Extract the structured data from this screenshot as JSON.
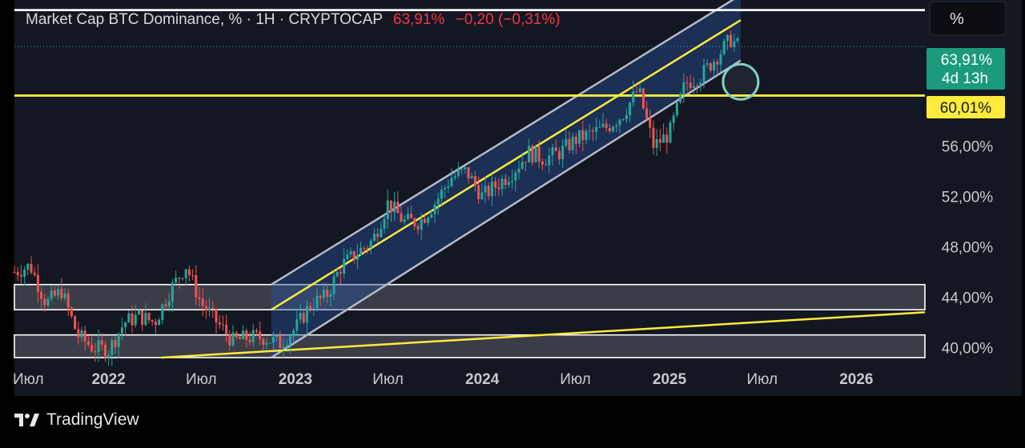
{
  "header": {
    "symbol_text": "Market Cap BTC Dominance, % · 1H · CRYPTOCAP",
    "last_price": "63,91%",
    "change_text": "−0,20 (−0,31%)"
  },
  "scale_button": {
    "label": "%"
  },
  "price_tag": {
    "value": "63,91%",
    "countdown": "4d 13h"
  },
  "level_tag": {
    "value": "60,01%"
  },
  "footer": {
    "brand": "TradingView"
  },
  "colors": {
    "background": "#131722",
    "panel": "#000000",
    "up": "#26a69a",
    "down": "#ef5350",
    "yellow": "#ffeb3b",
    "channel_fill": "#1f3a6e",
    "price_tag": "#1b9a7c",
    "header_red": "#f23645"
  },
  "chart_data": {
    "type": "line",
    "title": "Market Cap BTC Dominance, %",
    "interval": "1H",
    "source": "CRYPTOCAP",
    "x_tick_labels": [
      "Июл",
      "2022",
      "Июл",
      "2023",
      "Июл",
      "2024",
      "Июл",
      "2025",
      "Июл",
      "2026"
    ],
    "y_tick_labels": [
      "40,00%",
      "44,00%",
      "48,00%",
      "52,00%",
      "56,00%"
    ],
    "y_ticks": [
      40,
      44,
      48,
      52,
      56
    ],
    "ylim": [
      39.2,
      67.6
    ],
    "xlim": [
      "2021-07-01",
      "2026-05-15"
    ],
    "series": [
      {
        "values": [
          {
            "t": "2021-07-01",
            "v": 46.0
          },
          {
            "t": "2021-08-01",
            "v": 46.5
          },
          {
            "t": "2021-09-01",
            "v": 43.5
          },
          {
            "t": "2021-10-01",
            "v": 44.5
          },
          {
            "t": "2021-11-01",
            "v": 41.0
          },
          {
            "t": "2021-12-01",
            "v": 40.0
          },
          {
            "t": "2022-01-01",
            "v": 39.8
          },
          {
            "t": "2022-02-01",
            "v": 42.0
          },
          {
            "t": "2022-03-01",
            "v": 42.5
          },
          {
            "t": "2022-04-01",
            "v": 42.0
          },
          {
            "t": "2022-05-01",
            "v": 44.5
          },
          {
            "t": "2022-06-01",
            "v": 46.5
          },
          {
            "t": "2022-07-01",
            "v": 43.5
          },
          {
            "t": "2022-08-01",
            "v": 42.0
          },
          {
            "t": "2022-09-01",
            "v": 40.5
          },
          {
            "t": "2022-10-01",
            "v": 40.8
          },
          {
            "t": "2022-11-01",
            "v": 40.8
          },
          {
            "t": "2022-12-01",
            "v": 40.3
          },
          {
            "t": "2023-01-01",
            "v": 41.5
          },
          {
            "t": "2023-02-01",
            "v": 43.5
          },
          {
            "t": "2023-03-01",
            "v": 44.0
          },
          {
            "t": "2023-04-01",
            "v": 46.5
          },
          {
            "t": "2023-05-01",
            "v": 47.5
          },
          {
            "t": "2023-06-01",
            "v": 48.5
          },
          {
            "t": "2023-07-01",
            "v": 51.5
          },
          {
            "t": "2023-08-01",
            "v": 50.0
          },
          {
            "t": "2023-09-01",
            "v": 50.0
          },
          {
            "t": "2023-10-01",
            "v": 51.5
          },
          {
            "t": "2023-11-01",
            "v": 53.5
          },
          {
            "t": "2023-12-01",
            "v": 54.0
          },
          {
            "t": "2024-01-01",
            "v": 52.0
          },
          {
            "t": "2024-02-01",
            "v": 53.0
          },
          {
            "t": "2024-03-01",
            "v": 54.0
          },
          {
            "t": "2024-04-01",
            "v": 55.5
          },
          {
            "t": "2024-05-01",
            "v": 55.0
          },
          {
            "t": "2024-06-01",
            "v": 55.5
          },
          {
            "t": "2024-07-01",
            "v": 56.5
          },
          {
            "t": "2024-08-01",
            "v": 57.0
          },
          {
            "t": "2024-09-01",
            "v": 57.5
          },
          {
            "t": "2024-10-01",
            "v": 58.5
          },
          {
            "t": "2024-11-01",
            "v": 60.5
          },
          {
            "t": "2024-12-01",
            "v": 56.0
          },
          {
            "t": "2025-01-01",
            "v": 57.0
          },
          {
            "t": "2025-02-01",
            "v": 61.0
          },
          {
            "t": "2025-03-01",
            "v": 61.5
          },
          {
            "t": "2025-04-01",
            "v": 63.0
          },
          {
            "t": "2025-05-01",
            "v": 64.5
          },
          {
            "t": "2025-05-15",
            "v": 63.91
          }
        ]
      }
    ],
    "horizontal_levels": [
      {
        "value": 66.8,
        "color": "#ffffff"
      },
      {
        "value": 60.01,
        "color": "#ffeb3b"
      },
      {
        "value": 63.91,
        "color": "#26a69a",
        "style": "dotted"
      }
    ],
    "zones": [
      {
        "from": 43.0,
        "to": 45.0
      },
      {
        "from": 39.2,
        "to": 41.0
      }
    ],
    "channel": {
      "start": "2022-11-15",
      "end": "2025-05-20",
      "lower_start": 39.2,
      "lower_end": 62.8,
      "upper_start": 45.0,
      "upper_end": 68.0,
      "mid_start": 43.0,
      "mid_end": 66.0
    },
    "support_line": {
      "start": {
        "t": "2022-04-15",
        "v": 39.2
      },
      "end": {
        "t": "2026-05-15",
        "v": 42.8
      }
    },
    "marker_circle": {
      "t": "2025-05-20",
      "v": 61.1
    }
  }
}
